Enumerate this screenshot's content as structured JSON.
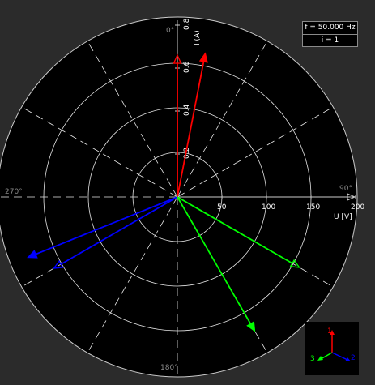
{
  "angles": {
    "deg0": "0°",
    "deg90": "90°",
    "deg180": "180°",
    "deg270": "270°"
  },
  "voltage_axis": {
    "label": "U [V]",
    "ticks": [
      {
        "value": 50,
        "text": "50"
      },
      {
        "value": 100,
        "text": "100"
      },
      {
        "value": 150,
        "text": "150"
      },
      {
        "value": 200,
        "text": "200"
      }
    ]
  },
  "current_axis": {
    "label": "I (A)",
    "ticks": [
      {
        "value": 0.2,
        "text": "0.2"
      },
      {
        "value": 0.4,
        "text": "0.4"
      },
      {
        "value": 0.6,
        "text": "0.6"
      },
      {
        "value": 0.8,
        "text": "0.8"
      }
    ]
  },
  "info": {
    "frequency": "f = 50.000 Hz",
    "index": "i = 1"
  },
  "legend": {
    "phase1": {
      "label": "1",
      "color": "#ff0000"
    },
    "phase2": {
      "label": "2",
      "color": "#0000ff"
    },
    "phase3": {
      "label": "3",
      "color": "#00ff00"
    }
  },
  "chart_data": {
    "type": "polar-phasor",
    "angle_convention": "degrees clockwise from top (0° up, 90° right)",
    "voltage_range": [
      0,
      200
    ],
    "current_range": [
      0,
      0.8
    ],
    "grid": true,
    "phasors": [
      {
        "phase": "1",
        "quantity": "voltage",
        "magnitude": 159,
        "angle_deg": 0,
        "color": "#ff0000",
        "head": "open"
      },
      {
        "phase": "1",
        "quantity": "current",
        "magnitude": 0.68,
        "angle_deg": 11,
        "color": "#ff0000",
        "head": "solid"
      },
      {
        "phase": "2",
        "quantity": "voltage",
        "magnitude": 160,
        "angle_deg": 240,
        "color": "#0000ff",
        "head": "open"
      },
      {
        "phase": "2",
        "quantity": "current",
        "magnitude": 0.75,
        "angle_deg": 248,
        "color": "#0000ff",
        "head": "solid"
      },
      {
        "phase": "3",
        "quantity": "voltage",
        "magnitude": 158,
        "angle_deg": 120,
        "color": "#00ff00",
        "head": "open"
      },
      {
        "phase": "3",
        "quantity": "current",
        "magnitude": 0.72,
        "angle_deg": 150,
        "color": "#00ff00",
        "head": "solid"
      }
    ]
  }
}
